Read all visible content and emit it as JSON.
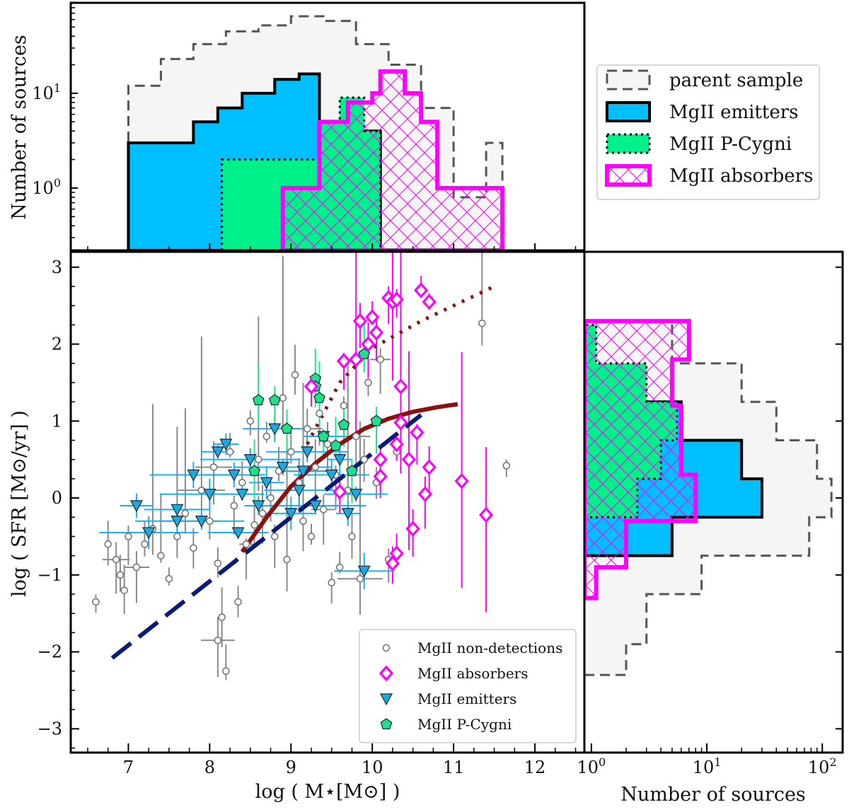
{
  "chart_data": [
    {
      "type": "histogram",
      "panel": "top",
      "ylabel": "Number of sources",
      "yscale": "log",
      "ylim": [
        0.22,
        90
      ],
      "xlim": [
        6.3,
        12.6
      ],
      "ytick_labels": [
        "10^0",
        "10^1"
      ],
      "legend": {
        "placement": "outside-right",
        "entries": [
          "parent sample",
          "MgII emitters",
          "MgII P-Cygni",
          "MgII absorbers"
        ]
      },
      "series": [
        {
          "name": "parent sample",
          "style": "dashed-grey-fill",
          "bins": [
            [
              7.0,
              7.4,
              12
            ],
            [
              7.4,
              7.8,
              23
            ],
            [
              7.8,
              8.2,
              33
            ],
            [
              8.2,
              8.6,
              45
            ],
            [
              8.6,
              9.0,
              52
            ],
            [
              9.0,
              9.4,
              65
            ],
            [
              9.4,
              9.8,
              58
            ],
            [
              9.8,
              10.2,
              33
            ],
            [
              10.2,
              10.6,
              20
            ],
            [
              10.6,
              11.0,
              7
            ],
            [
              11.0,
              11.4,
              0.8
            ],
            [
              11.4,
              11.6,
              3
            ]
          ]
        },
        {
          "name": "MgII emitters",
          "style": "solid-blue",
          "bins": [
            [
              7.0,
              7.8,
              3
            ],
            [
              7.8,
              8.1,
              5
            ],
            [
              8.1,
              8.4,
              7
            ],
            [
              8.4,
              8.8,
              10
            ],
            [
              8.8,
              9.1,
              14
            ],
            [
              9.1,
              9.35,
              16
            ],
            [
              9.35,
              10.1,
              4
            ]
          ]
        },
        {
          "name": "MgII P-Cygni",
          "style": "dotted-green",
          "bins": [
            [
              8.15,
              9.35,
              2
            ],
            [
              9.35,
              9.6,
              5
            ],
            [
              9.6,
              9.9,
              9
            ],
            [
              9.9,
              10.1,
              4
            ]
          ]
        },
        {
          "name": "MgII absorbers",
          "style": "magenta-hatched",
          "bins": [
            [
              8.9,
              9.35,
              1
            ],
            [
              9.35,
              9.7,
              5
            ],
            [
              9.7,
              10.0,
              8
            ],
            [
              10.0,
              10.1,
              10
            ],
            [
              10.1,
              10.4,
              17
            ],
            [
              10.4,
              10.6,
              10
            ],
            [
              10.6,
              10.8,
              5
            ],
            [
              10.8,
              11.6,
              1
            ]
          ]
        }
      ]
    },
    {
      "type": "scatter",
      "panel": "main",
      "xlabel": "log ( M⋆[M⊙] )",
      "ylabel": "log ( SFR [M⊙/yr] )",
      "xlim": [
        6.3,
        12.6
      ],
      "ylim": [
        -3.3,
        3.2
      ],
      "xticks": [
        7,
        8,
        9,
        10,
        11,
        12
      ],
      "yticks": [
        -3,
        -2,
        -1,
        0,
        1,
        2,
        3
      ],
      "legend": {
        "placement": "lower-right",
        "entries": [
          "MgII non-detections",
          "MgII absorbers",
          "MgII emitters",
          "MgII P-Cygni"
        ]
      },
      "series": [
        {
          "name": "MgII non-detections",
          "marker": "grey-circle",
          "points": [
            [
              6.6,
              -1.35
            ],
            [
              6.75,
              -0.6
            ],
            [
              6.85,
              -0.8
            ],
            [
              6.9,
              -1.0
            ],
            [
              6.95,
              -1.2
            ],
            [
              7.0,
              -0.5
            ],
            [
              7.1,
              -0.9
            ],
            [
              7.2,
              -0.6
            ],
            [
              7.3,
              -0.4
            ],
            [
              7.4,
              -0.75
            ],
            [
              7.5,
              -1.05
            ],
            [
              7.6,
              -0.5
            ],
            [
              7.7,
              -0.2
            ],
            [
              7.8,
              -0.65
            ],
            [
              7.9,
              0.1
            ],
            [
              8.0,
              -0.3
            ],
            [
              8.05,
              0.4
            ],
            [
              8.1,
              -0.85
            ],
            [
              8.15,
              -1.55
            ],
            [
              8.1,
              -1.85
            ],
            [
              8.2,
              -2.25
            ],
            [
              8.25,
              0.6
            ],
            [
              8.3,
              -0.1
            ],
            [
              8.35,
              -1.35
            ],
            [
              8.4,
              0.2
            ],
            [
              8.45,
              -0.6
            ],
            [
              8.5,
              1.0
            ],
            [
              8.55,
              -0.35
            ],
            [
              8.6,
              0.5
            ],
            [
              8.65,
              -0.2
            ],
            [
              8.7,
              0.8
            ],
            [
              8.75,
              0.0
            ],
            [
              8.8,
              -0.5
            ],
            [
              8.85,
              0.35
            ],
            [
              8.9,
              1.3
            ],
            [
              8.95,
              -0.8
            ],
            [
              9.0,
              0.6
            ],
            [
              9.05,
              1.6
            ],
            [
              9.1,
              0.2
            ],
            [
              9.15,
              -0.3
            ],
            [
              9.2,
              0.9
            ],
            [
              9.25,
              -0.5
            ],
            [
              9.3,
              0.4
            ],
            [
              9.35,
              1.1
            ],
            [
              9.4,
              -0.15
            ],
            [
              9.45,
              0.7
            ],
            [
              9.5,
              -1.1
            ],
            [
              9.55,
              0.3
            ],
            [
              9.6,
              -0.9
            ],
            [
              9.65,
              1.2
            ],
            [
              9.7,
              0.1
            ],
            [
              9.75,
              -0.5
            ],
            [
              9.8,
              0.8
            ],
            [
              9.85,
              -1.05
            ],
            [
              9.9,
              0.5
            ],
            [
              9.95,
              1.5
            ],
            [
              10.05,
              0.2
            ],
            [
              10.1,
              1.8
            ],
            [
              10.2,
              -0.8
            ],
            [
              10.3,
              0.6
            ],
            [
              11.35,
              2.27
            ],
            [
              11.65,
              0.42
            ]
          ]
        },
        {
          "name": "MgII absorbers",
          "marker": "magenta-diamond",
          "points": [
            [
              9.25,
              1.45
            ],
            [
              9.65,
              1.78
            ],
            [
              9.8,
              1.8
            ],
            [
              9.6,
              0.08
            ],
            [
              9.85,
              2.3
            ],
            [
              10.0,
              2.35
            ],
            [
              10.05,
              2.15
            ],
            [
              9.95,
              2.0
            ],
            [
              10.1,
              0.5
            ],
            [
              10.1,
              0.28
            ],
            [
              10.2,
              2.6
            ],
            [
              10.25,
              2.55
            ],
            [
              10.3,
              2.58
            ],
            [
              10.35,
              1.45
            ],
            [
              10.3,
              0.7
            ],
            [
              10.35,
              0.98
            ],
            [
              10.45,
              0.5
            ],
            [
              10.5,
              -0.4
            ],
            [
              10.55,
              0.85
            ],
            [
              10.6,
              2.7
            ],
            [
              10.7,
              2.55
            ],
            [
              10.65,
              0.05
            ],
            [
              10.7,
              0.4
            ],
            [
              10.25,
              -0.85
            ],
            [
              10.3,
              -0.72
            ],
            [
              11.1,
              0.22
            ],
            [
              11.4,
              -0.22
            ]
          ]
        },
        {
          "name": "MgII emitters",
          "marker": "blue-triangle",
          "points": [
            [
              7.1,
              -0.1
            ],
            [
              7.6,
              -0.15
            ],
            [
              7.6,
              -0.3
            ],
            [
              7.8,
              0.3
            ],
            [
              7.9,
              -0.3
            ],
            [
              8.0,
              0.05
            ],
            [
              8.1,
              0.6
            ],
            [
              8.2,
              0.7
            ],
            [
              8.3,
              0.3
            ],
            [
              8.4,
              0.05
            ],
            [
              8.5,
              0.5
            ],
            [
              8.6,
              -0.1
            ],
            [
              8.7,
              0.2
            ],
            [
              8.8,
              0.9
            ],
            [
              8.9,
              0.4
            ],
            [
              9.0,
              -0.2
            ],
            [
              9.1,
              0.1
            ],
            [
              9.2,
              0.6
            ],
            [
              9.3,
              -0.1
            ],
            [
              9.4,
              0.8
            ],
            [
              9.5,
              0.3
            ],
            [
              9.6,
              0.5
            ],
            [
              9.7,
              -0.2
            ],
            [
              9.8,
              0.05
            ],
            [
              9.9,
              -0.95
            ],
            [
              8.35,
              -0.45
            ],
            [
              7.25,
              -0.45
            ],
            [
              9.15,
              0.35
            ]
          ]
        },
        {
          "name": "MgII P-Cygni",
          "marker": "green-pentagon",
          "points": [
            [
              8.6,
              1.27
            ],
            [
              8.8,
              1.27
            ],
            [
              9.3,
              1.55
            ],
            [
              9.35,
              1.3
            ],
            [
              9.3,
              1.45
            ],
            [
              9.4,
              0.8
            ],
            [
              9.55,
              0.68
            ],
            [
              9.65,
              0.95
            ],
            [
              9.75,
              0.35
            ],
            [
              9.9,
              1.87
            ],
            [
              10.05,
              1.0
            ],
            [
              8.95,
              0.9
            ],
            [
              8.55,
              0.35
            ]
          ]
        }
      ],
      "relations": [
        {
          "name": "dashed-navy-line",
          "style": "dashed",
          "points": [
            [
              6.8,
              -2.08
            ],
            [
              10.6,
              1.08
            ]
          ]
        },
        {
          "name": "solid-darkred-curve",
          "style": "solid",
          "points": [
            [
              8.4,
              -0.7
            ],
            [
              8.7,
              -0.25
            ],
            [
              9.0,
              0.15
            ],
            [
              9.3,
              0.45
            ],
            [
              9.6,
              0.7
            ],
            [
              9.9,
              0.9
            ],
            [
              10.2,
              1.03
            ],
            [
              10.5,
              1.12
            ],
            [
              10.8,
              1.18
            ],
            [
              11.05,
              1.22
            ]
          ]
        },
        {
          "name": "dotted-darkred-line",
          "style": "dotted",
          "points": [
            [
              9.2,
              0.7
            ],
            [
              9.6,
              1.5
            ],
            [
              10.0,
              1.95
            ],
            [
              10.6,
              2.3
            ],
            [
              11.1,
              2.55
            ],
            [
              11.5,
              2.75
            ]
          ]
        }
      ]
    },
    {
      "type": "histogram",
      "panel": "right",
      "orientation": "horizontal",
      "xlabel": "Number of sources",
      "xscale": "log",
      "xlim": [
        0.87,
        150
      ],
      "xtick_labels": [
        "10^0",
        "10^1",
        "10^2"
      ],
      "series": [
        {
          "name": "parent sample",
          "bins": [
            [
              -2.3,
              -1.9,
              2
            ],
            [
              -1.9,
              -1.25,
              3
            ],
            [
              -1.25,
              -0.75,
              9
            ],
            [
              -0.75,
              -0.25,
              77
            ],
            [
              -0.25,
              0.25,
              120
            ],
            [
              0.25,
              0.75,
              90
            ],
            [
              0.75,
              1.25,
              40
            ],
            [
              1.25,
              1.75,
              20
            ],
            [
              1.75,
              2.3,
              5
            ]
          ]
        },
        {
          "name": "MgII emitters",
          "bins": [
            [
              -1.25,
              -0.75,
              0.87
            ],
            [
              -0.75,
              -0.25,
              5
            ],
            [
              -0.25,
              0.25,
              30
            ],
            [
              0.25,
              0.75,
              20
            ],
            [
              0.75,
              1.25,
              6
            ]
          ]
        },
        {
          "name": "MgII P-Cygni",
          "bins": [
            [
              -0.25,
              0.25,
              2.5
            ],
            [
              0.25,
              0.75,
              4
            ],
            [
              0.75,
              1.25,
              5.5
            ],
            [
              1.25,
              1.75,
              3
            ],
            [
              1.75,
              2.25,
              1.1
            ]
          ]
        },
        {
          "name": "MgII absorbers",
          "bins": [
            [
              -1.3,
              -0.9,
              1.1
            ],
            [
              -0.9,
              -0.3,
              2
            ],
            [
              -0.3,
              0.3,
              8
            ],
            [
              0.3,
              1.2,
              6
            ],
            [
              1.2,
              1.8,
              5
            ],
            [
              1.8,
              2.3,
              7
            ]
          ]
        }
      ]
    }
  ]
}
